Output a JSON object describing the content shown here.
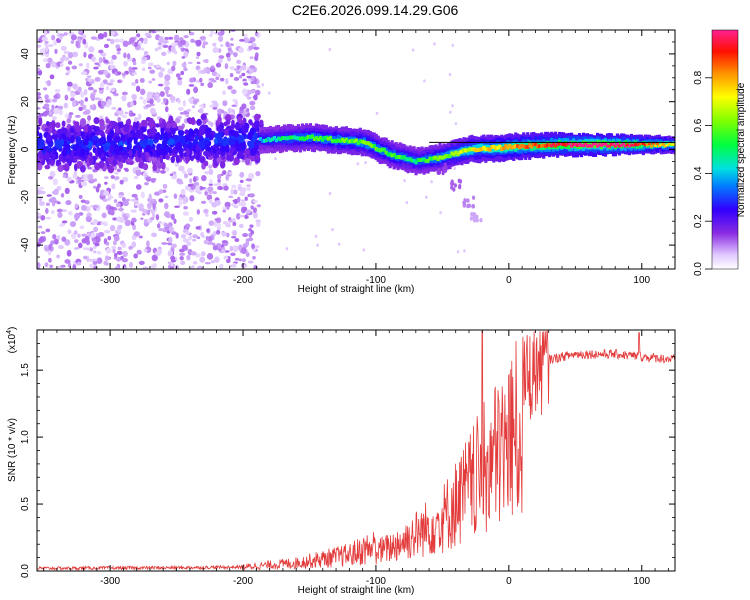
{
  "title": "C2E6.2026.099.14.29.G06",
  "chart_data": [
    {
      "type": "heatmap",
      "xlabel": "Height of straight line (km)",
      "ylabel": "Frequency (Hz)",
      "xlim": [
        -355,
        125
      ],
      "ylim": [
        -50,
        50
      ],
      "xticks": [
        -300,
        -200,
        -100,
        0,
        100
      ],
      "yticks": [
        -40,
        -20,
        0,
        20,
        40
      ],
      "colorbar": {
        "label": "Normalized spectral amplitude",
        "range": [
          0,
          1
        ],
        "ticks": [
          0.0,
          0.2,
          0.4,
          0.6,
          0.8
        ],
        "tick_labels": [
          "0.0",
          "0.2",
          "0.4",
          "0.6",
          "0.8"
        ]
      },
      "ridge": [
        {
          "x": -350,
          "f": 2,
          "amp": 0.2
        },
        {
          "x": -300,
          "f": 2,
          "amp": 0.2
        },
        {
          "x": -250,
          "f": 3,
          "amp": 0.22
        },
        {
          "x": -190,
          "f": 4,
          "amp": 0.3
        },
        {
          "x": -150,
          "f": 5,
          "amp": 0.45
        },
        {
          "x": -110,
          "f": 3,
          "amp": 0.5
        },
        {
          "x": -90,
          "f": -2,
          "amp": 0.45
        },
        {
          "x": -70,
          "f": -5,
          "amp": 0.4
        },
        {
          "x": -50,
          "f": -3,
          "amp": 0.5
        },
        {
          "x": -30,
          "f": 0,
          "amp": 0.6
        },
        {
          "x": 0,
          "f": 1,
          "amp": 0.7
        },
        {
          "x": 30,
          "f": 2,
          "amp": 0.8
        },
        {
          "x": 60,
          "f": 2,
          "amp": 0.95
        },
        {
          "x": 90,
          "f": 2,
          "amp": 0.85
        },
        {
          "x": 125,
          "f": 2,
          "amp": 0.6
        }
      ],
      "branch": [
        {
          "x": -50,
          "f": -8
        },
        {
          "x": -40,
          "f": -15
        },
        {
          "x": -30,
          "f": -22
        },
        {
          "x": -25,
          "f": -28
        }
      ],
      "noise_cutoff_x": -188,
      "reference_line_f": 3
    },
    {
      "type": "line",
      "xlabel": "Height of straight line (km)",
      "ylabel": "SNR (10 * v/v)",
      "yscale_note": "(x10",
      "yscale_exp": "4",
      "xlim": [
        -355,
        125
      ],
      "ylim": [
        0,
        1.8
      ],
      "xticks": [
        -300,
        -200,
        -100,
        0,
        100
      ],
      "yticks": [
        0.0,
        0.5,
        1.0,
        1.5
      ],
      "ytick_labels": [
        "0.0",
        "0.5",
        "1.0",
        "1.5"
      ],
      "color": "#e33b3b",
      "series": [
        {
          "name": "SNR",
          "envelope": [
            {
              "x": -355,
              "y": 0.02
            },
            {
              "x": -250,
              "y": 0.025
            },
            {
              "x": -200,
              "y": 0.03
            },
            {
              "x": -160,
              "y": 0.06
            },
            {
              "x": -120,
              "y": 0.12
            },
            {
              "x": -90,
              "y": 0.22
            },
            {
              "x": -70,
              "y": 0.35
            },
            {
              "x": -50,
              "y": 0.5
            },
            {
              "x": -40,
              "y": 0.65
            },
            {
              "x": -30,
              "y": 0.8
            },
            {
              "x": -20,
              "y": 0.95
            },
            {
              "x": -10,
              "y": 1.1
            },
            {
              "x": 0,
              "y": 1.25
            },
            {
              "x": 10,
              "y": 1.4
            },
            {
              "x": 20,
              "y": 1.52
            },
            {
              "x": 30,
              "y": 1.58
            },
            {
              "x": 50,
              "y": 1.62
            },
            {
              "x": 80,
              "y": 1.62
            },
            {
              "x": 100,
              "y": 1.6
            },
            {
              "x": 125,
              "y": 1.58
            }
          ],
          "spikes": [
            {
              "x": -20,
              "y": 1.8
            },
            {
              "x": 98,
              "y": 1.78
            }
          ]
        }
      ]
    }
  ]
}
